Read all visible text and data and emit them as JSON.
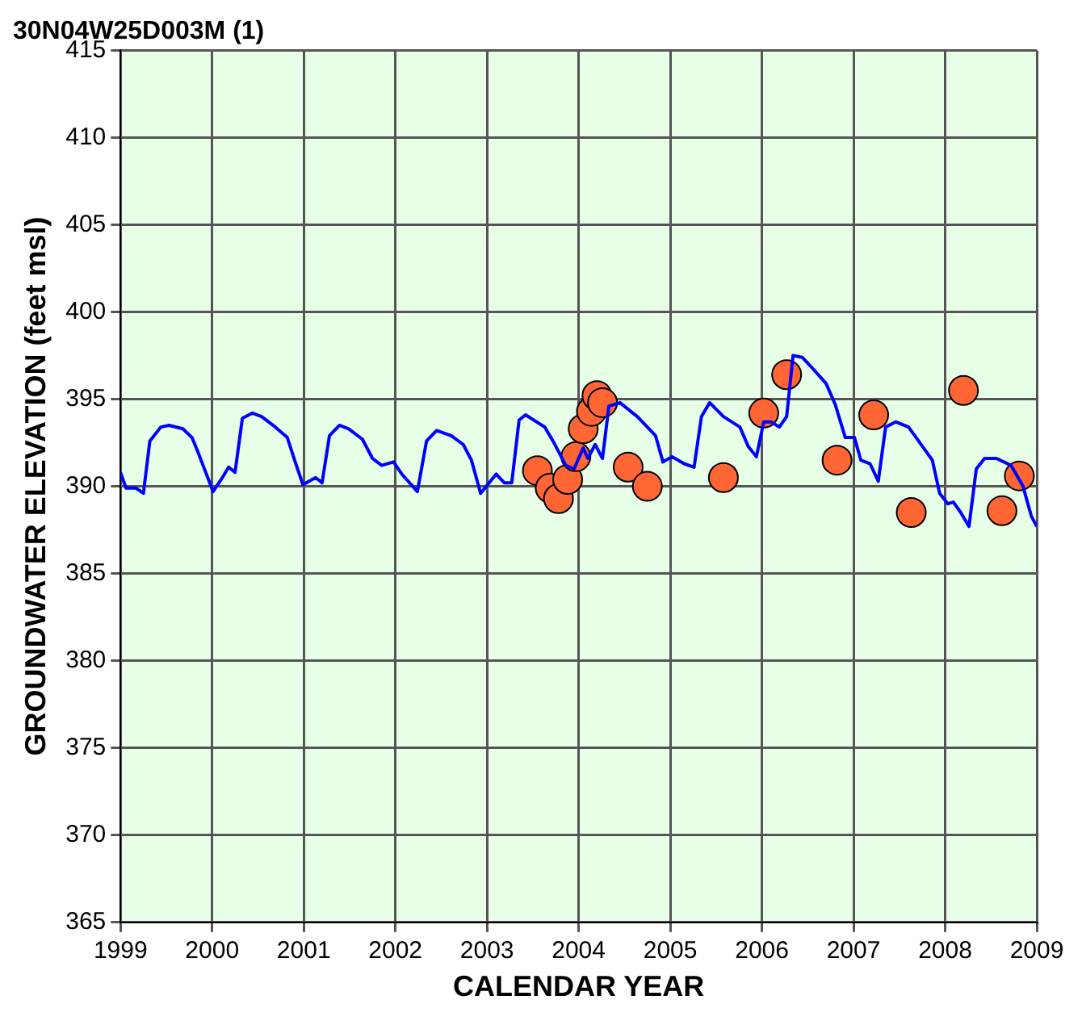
{
  "chart_data": {
    "type": "line",
    "title": "30N04W25D003M (1)",
    "xlabel": "CALENDAR YEAR",
    "ylabel": "GROUNDWATER ELEVATION (feet msl)",
    "xlim": [
      1999,
      2009
    ],
    "ylim": [
      365,
      415
    ],
    "xticks": [
      1999,
      2000,
      2001,
      2002,
      2003,
      2004,
      2005,
      2006,
      2007,
      2008,
      2009
    ],
    "yticks": [
      365,
      370,
      375,
      380,
      385,
      390,
      395,
      400,
      405,
      410,
      415
    ],
    "grid": true,
    "legend": false,
    "series": [
      {
        "type": "line",
        "color": "#0000ff",
        "marker": "none",
        "x": [
          1999.0,
          1999.06,
          1999.17,
          1999.25,
          1999.32,
          1999.44,
          1999.53,
          1999.68,
          1999.78,
          1999.85,
          1999.93,
          2000.01,
          2000.1,
          2000.18,
          2000.25,
          2000.33,
          2000.44,
          2000.54,
          2000.69,
          2000.82,
          2000.9,
          2000.99,
          2001.13,
          2001.2,
          2001.28,
          2001.39,
          2001.49,
          2001.64,
          2001.75,
          2001.85,
          2001.98,
          2002.07,
          2002.24,
          2002.34,
          2002.45,
          2002.61,
          2002.74,
          2002.83,
          2002.93,
          2003.1,
          2003.19,
          2003.27,
          2003.35,
          2003.42,
          2003.63,
          2003.72,
          2003.86,
          2003.95,
          2004.05,
          2004.1,
          2004.18,
          2004.26,
          2004.33,
          2004.45,
          2004.64,
          2004.84,
          2004.92,
          2005.02,
          2005.15,
          2005.26,
          2005.34,
          2005.43,
          2005.58,
          2005.76,
          2005.85,
          2005.94,
          2006.02,
          2006.1,
          2006.19,
          2006.27,
          2006.34,
          2006.44,
          2006.53,
          2006.7,
          2006.8,
          2006.91,
          2007.01,
          2007.08,
          2007.18,
          2007.27,
          2007.35,
          2007.46,
          2007.6,
          2007.71,
          2007.86,
          2007.94,
          2008.03,
          2008.09,
          2008.17,
          2008.26,
          2008.34,
          2008.43,
          2008.56,
          2008.72,
          2008.85,
          2008.94,
          2009.0
        ],
        "values": [
          390.8,
          389.9,
          389.9,
          389.6,
          392.6,
          393.4,
          393.5,
          393.3,
          392.8,
          391.9,
          390.8,
          389.7,
          390.4,
          391.1,
          390.8,
          393.9,
          394.2,
          394.0,
          393.4,
          392.8,
          391.5,
          390.1,
          390.5,
          390.2,
          392.9,
          393.5,
          393.3,
          392.7,
          391.6,
          391.2,
          391.4,
          390.7,
          389.7,
          392.6,
          393.2,
          392.9,
          392.4,
          391.5,
          389.6,
          390.7,
          390.2,
          390.2,
          393.8,
          394.1,
          393.4,
          392.6,
          391.2,
          391.0,
          392.2,
          391.6,
          392.4,
          391.6,
          394.6,
          394.8,
          394.0,
          392.9,
          391.4,
          391.7,
          391.3,
          391.1,
          394.0,
          394.8,
          394.0,
          393.4,
          392.3,
          391.7,
          393.7,
          393.7,
          393.4,
          394.0,
          397.5,
          397.4,
          396.9,
          395.9,
          394.7,
          392.8,
          392.8,
          391.5,
          391.3,
          390.3,
          393.4,
          393.7,
          393.4,
          392.6,
          391.5,
          389.6,
          389.0,
          389.1,
          388.5,
          387.7,
          391.0,
          391.6,
          391.6,
          391.2,
          390.0,
          388.3,
          387.7
        ]
      },
      {
        "type": "scatter",
        "color": "#ff6633",
        "marker": "circle",
        "x": [
          2003.55,
          2003.69,
          2003.78,
          2003.88,
          2003.97,
          2004.05,
          2004.14,
          2004.2,
          2004.26,
          2004.54,
          2004.75,
          2005.58,
          2006.02,
          2006.27,
          2006.82,
          2007.22,
          2007.63,
          2008.2,
          2008.62,
          2008.81
        ],
        "values": [
          390.9,
          389.9,
          389.3,
          390.4,
          391.7,
          393.3,
          394.3,
          395.2,
          394.8,
          391.1,
          390.0,
          390.5,
          394.2,
          396.4,
          391.5,
          394.1,
          388.5,
          395.5,
          388.6,
          390.6
        ]
      }
    ]
  }
}
